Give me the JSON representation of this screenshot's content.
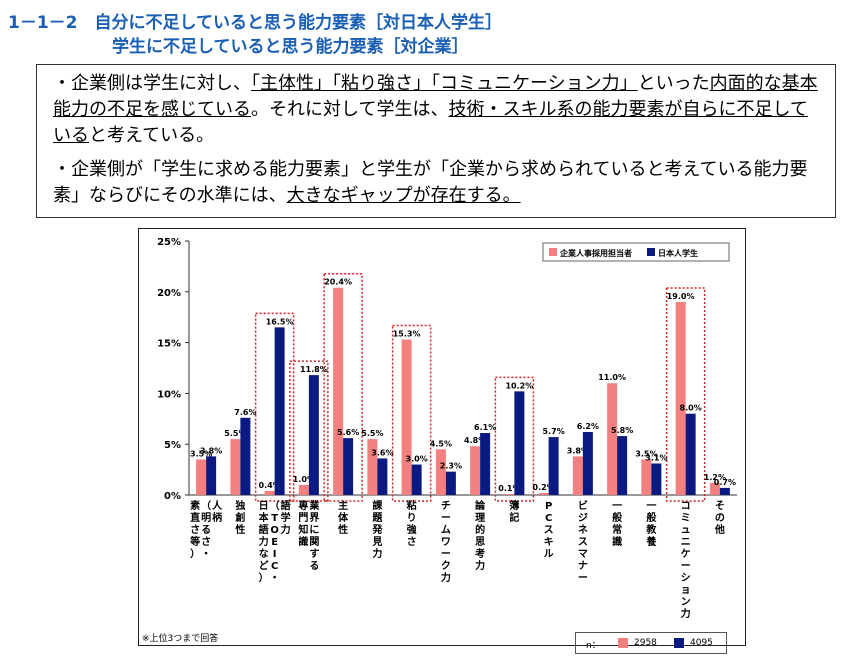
{
  "title": {
    "line1": "1－1－2　自分に不足していると思う能力要素［対日本人学生］",
    "line2": "学生に不足していると思う能力要素［対企業］"
  },
  "summary": {
    "p1_parts": [
      {
        "t": "・企業側は学生に対し、",
        "u": false
      },
      {
        "t": "「主体性」「粘り強さ」「コミュニケーション力」",
        "u": true
      },
      {
        "t": "といった",
        "u": false
      },
      {
        "t": "内面的な基本能力の不足を感じている",
        "u": true
      },
      {
        "t": "。それに対して学生は、",
        "u": false
      },
      {
        "t": "技術・スキル系の能力要素が自らに不足している",
        "u": true
      },
      {
        "t": "と考えている。",
        "u": false
      }
    ],
    "p2_parts": [
      {
        "t": "・企業側が「学生に求める能力要素」と学生が「企業から求められていると考えている能力要素」ならびにその水準には、",
        "u": false
      },
      {
        "t": "大きなギャップが存在する。",
        "u": true
      }
    ]
  },
  "footnote": "※上位3つまで回答",
  "n_box": {
    "label": "n：",
    "company_n": "2958",
    "student_n": "4095"
  },
  "chart_data": {
    "type": "bar",
    "categories": [
      "人柄（明るさ・素直さ等）",
      "独創性",
      "語学力（TOEIC・日本語力など）",
      "業界に関する専門知識",
      "主体性",
      "課題発見力",
      "粘り強さ",
      "チームワーク力",
      "論理的思考力",
      "簿記",
      "PCスキル",
      "ビジネスマナー",
      "一般常識",
      "一般教養",
      "コミュニケーション力",
      "その他"
    ],
    "label_cols": [
      [
        "人柄",
        "（明るさ・",
        "素直さ等）"
      ],
      [
        "独創性"
      ],
      [
        "語学力",
        "（TOEIC・",
        "日本語力など）"
      ],
      [
        "業界に関する",
        "専門知識"
      ],
      [
        "主体性"
      ],
      [
        "課題発見力"
      ],
      [
        "粘り強さ"
      ],
      [
        "チームワーク力"
      ],
      [
        "論理的思考力"
      ],
      [
        "簿記"
      ],
      [
        "PCスキル"
      ],
      [
        "ビジネスマナー"
      ],
      [
        "一般常識"
      ],
      [
        "一般教養"
      ],
      [
        "コミュニケーション力"
      ],
      [
        "その他"
      ]
    ],
    "series": [
      {
        "name": "企業人事採用担当者",
        "color": "#f47f7f",
        "values": [
          3.5,
          5.5,
          0.4,
          1.0,
          20.4,
          5.5,
          15.3,
          4.5,
          4.8,
          0.1,
          0.2,
          3.8,
          11.0,
          3.5,
          19.0,
          1.2
        ]
      },
      {
        "name": "日本人学生",
        "color": "#0b1a80",
        "values": [
          3.8,
          7.6,
          16.5,
          11.8,
          5.6,
          3.6,
          3.0,
          2.3,
          6.1,
          10.2,
          5.7,
          6.2,
          5.8,
          3.1,
          8.0,
          0.7
        ]
      }
    ],
    "yticks": [
      "0%",
      "5%",
      "10%",
      "15%",
      "20%",
      "25%"
    ],
    "ylim": [
      0,
      25
    ],
    "highlighted": [
      "語学力（TOEIC・日本語力など）",
      "業界に関する専門知識",
      "主体性",
      "粘り強さ",
      "簿記",
      "コミュニケーション力"
    ],
    "legend_position": "top-right",
    "grid": false
  }
}
